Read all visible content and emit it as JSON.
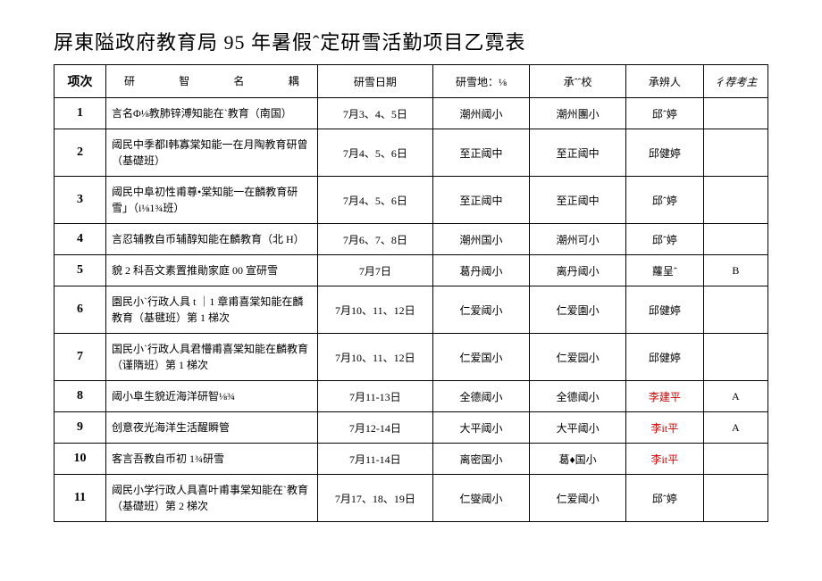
{
  "title": "屏東隘政府教育局 95 年暑假ˆ定研雪活勤项目乙霓表",
  "header": {
    "idx": "项次",
    "name": "研　　　智　　　名　　　耦",
    "date": "研雪日期",
    "loc": "研雪地：⅛",
    "host": "承ˆˆ校",
    "pers": "承辨人",
    "note": "彳荐考主"
  },
  "rows": [
    {
      "idx": "1",
      "name": "言名Φ⅛教肺锌溥知能在ˋ教育（南国）",
      "date": "7月3、4、5日",
      "loc": "潮州阈小",
      "host": "潮州團小",
      "pers": "邱ˆ婷",
      "note": ""
    },
    {
      "idx": "2",
      "name": "阈民中季都Ⅰ韩寡棠知能一在月陶教育研曾（基礎班）",
      "date": "7月4、5、6日",
      "loc": "至正阈中",
      "host": "至正阈中",
      "pers": "邱健婷",
      "note": ""
    },
    {
      "idx": "3",
      "name": "阈民中阜初性甫尊•棠知能一在麟教育研雪」（i⅛1¾班）",
      "date": "7月4、5、6日",
      "loc": "至正阈中",
      "host": "至正阈中",
      "pers": "邱ˆ婷",
      "note": ""
    },
    {
      "idx": "4",
      "name": "言忍辅教自币辅醇知能在麟教育（北 H）",
      "date": "7月6、7、8日",
      "loc": "潮州国小",
      "host": "潮州可小",
      "pers": "邱ˆ婷",
      "note": ""
    },
    {
      "idx": "5",
      "name": "貌 2 科吾文素置推勛家庭 00 宣研雪",
      "date": "7月7日",
      "loc": "葛丹阈小",
      "host": "离丹阈小",
      "pers": "蘿呈ˆ",
      "note": "B"
    },
    {
      "idx": "6",
      "name": "園民小ˋ行政人具 t ｜1 章甫喜棠知能在麟教育（基毽班）第 1 梯次",
      "date": "7月10、11、12日",
      "loc": "仁爱阈小",
      "host": "仁爱園小",
      "pers": "邱健婷",
      "note": ""
    },
    {
      "idx": "7",
      "name": "国民小ˋ行政人具君懵甫喜棠知能在麟教育（谨隋班）第 1 梯次",
      "date": "7月10、11、12日",
      "loc": "仁爱国小",
      "host": "仁爱园小",
      "pers": "邱健婷",
      "note": ""
    },
    {
      "idx": "8",
      "name": "阈小阜生貌近海洋研智⅛¾",
      "date": "7月11-13日",
      "loc": "全德阈小",
      "host": "全德阈小",
      "pers": "李建平",
      "pers_red": true,
      "note": "A"
    },
    {
      "idx": "9",
      "name": "创意夜光海洋生活醒瞬管",
      "date": "7月12-14日",
      "loc": "大平阈小",
      "host": "大平阈小",
      "pers": "李it平",
      "pers_red": true,
      "note": "A"
    },
    {
      "idx": "10",
      "name": "客言吾教自币初 1¾研雪",
      "date": "7月11-14日",
      "loc": "离密国小",
      "host": "葛♦国小",
      "pers": "李it平",
      "pers_red": true,
      "note": ""
    },
    {
      "idx": "11",
      "name": "阈民小学行政人具喜叶甫事棠知能在ˋ教育（基礎班）第 2 梯次",
      "date": "7月17、18、19日",
      "loc": "仁燮阈小",
      "host": "仁爱阈小",
      "pers": "邱ˆ婷",
      "note": ""
    }
  ]
}
